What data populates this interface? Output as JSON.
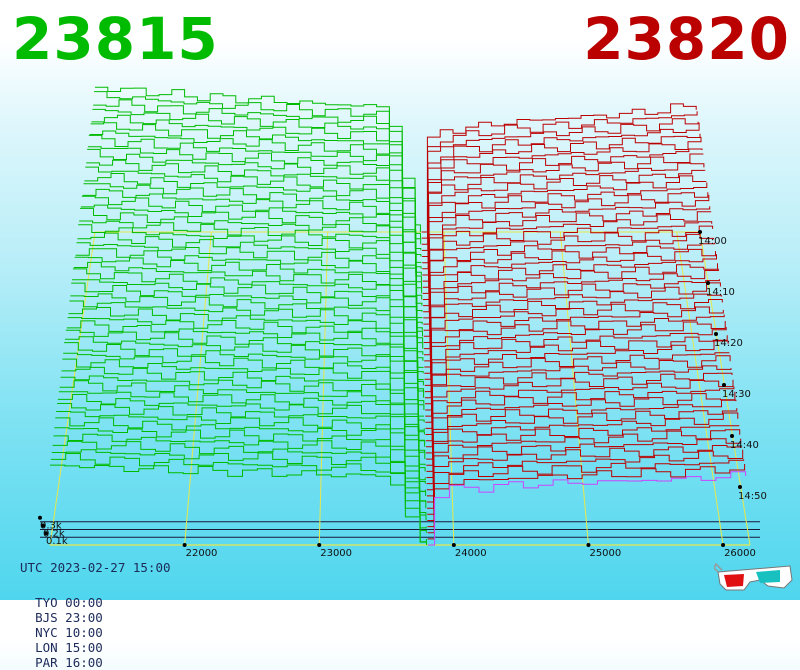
{
  "header": {
    "bid_price": "23815",
    "ask_price": "23820",
    "bid_color": "#00bb00",
    "ask_color": "#bb0000"
  },
  "footer": {
    "utc_label": "UTC 2023-02-27 15:00",
    "zones": [
      {
        "label": "TYO 00:00"
      },
      {
        "label": "BJS 23:00"
      },
      {
        "label": "NYC 10:00"
      },
      {
        "label": "LON 15:00"
      },
      {
        "label": "PAR 16:00"
      }
    ]
  },
  "chart_data": {
    "type": "area",
    "description_kind": "3d-depth-history",
    "bid_color": "#00bb00",
    "ask_color": "#bb0000",
    "latest_ask_color": "#cc44ff",
    "price_axis": {
      "range": [
        21000,
        26200
      ],
      "ticks": [
        22000,
        23000,
        24000,
        25000,
        26000
      ]
    },
    "volume_axis": {
      "ticks": [
        {
          "value": 100,
          "label": "0.1k"
        },
        {
          "value": 200,
          "label": "0.2k"
        },
        {
          "value": 300,
          "label": "0.3k"
        }
      ]
    },
    "time_axis": {
      "ticks": [
        "14:00",
        "14:10",
        "14:20",
        "14:30",
        "14:40",
        "14:50"
      ]
    },
    "mid_price": 23817,
    "bid_profile": [
      [
        21000,
        340
      ],
      [
        21400,
        330
      ],
      [
        21800,
        320
      ],
      [
        22100,
        315
      ],
      [
        22400,
        312
      ],
      [
        22700,
        305
      ],
      [
        23000,
        300
      ],
      [
        23300,
        297
      ],
      [
        23500,
        290
      ],
      [
        23620,
        150
      ],
      [
        23700,
        50
      ],
      [
        23760,
        0
      ]
    ],
    "ask_profile": [
      [
        23760,
        0
      ],
      [
        23800,
        120
      ],
      [
        23860,
        220
      ],
      [
        24000,
        240
      ],
      [
        24300,
        250
      ],
      [
        24600,
        260
      ],
      [
        25000,
        268
      ],
      [
        25400,
        275
      ],
      [
        25800,
        285
      ],
      [
        26200,
        300
      ]
    ],
    "snapshots": 52,
    "growth_per_older_snapshot": 0.75
  }
}
